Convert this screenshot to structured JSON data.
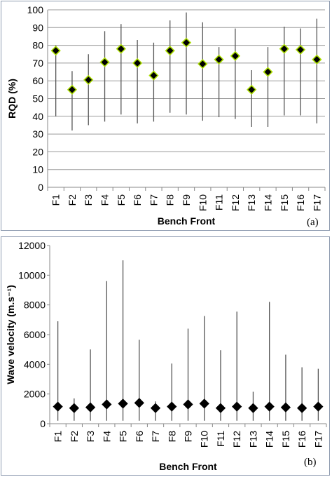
{
  "chart_data": [
    {
      "type": "scatter",
      "panel_label": "(a)",
      "xlabel": "Bench Front",
      "ylabel": "RQD  (%)",
      "ylim": [
        0,
        100
      ],
      "yticks": [
        0,
        10,
        20,
        30,
        40,
        50,
        60,
        70,
        80,
        90,
        100
      ],
      "grid": true,
      "marker": "diamond",
      "marker_fill": "#000000",
      "marker_edge": "#aadd00",
      "categories": [
        "F1",
        "F2",
        "F3",
        "F4",
        "F5",
        "F6",
        "F7",
        "F8",
        "F9",
        "F10",
        "F11",
        "F12",
        "F13",
        "F14",
        "F15",
        "F16",
        "F17"
      ],
      "values": [
        77,
        55,
        60.5,
        70.5,
        78,
        70,
        63,
        77,
        81.5,
        69.5,
        72,
        74,
        55,
        65,
        78,
        77.5,
        72
      ],
      "min": [
        40,
        32,
        35,
        37,
        41,
        36,
        37,
        42,
        41,
        37.5,
        39.5,
        38.5,
        34,
        34,
        40.5,
        40.5,
        36
      ],
      "max": [
        80,
        65.5,
        75,
        88,
        92,
        83,
        81.5,
        94,
        98.5,
        93,
        79,
        89.5,
        66,
        79,
        90.5,
        89.5,
        95
      ]
    },
    {
      "type": "scatter",
      "panel_label": "(b)",
      "xlabel": "Bench Front",
      "ylabel": "Wave velocity (m.s⁻¹)",
      "ylim": [
        0,
        12000
      ],
      "yticks": [
        0,
        2000,
        4000,
        6000,
        8000,
        10000,
        12000
      ],
      "grid": false,
      "marker": "diamond",
      "marker_fill": "#000000",
      "marker_edge": "#000000",
      "categories": [
        "F1",
        "F2",
        "F3",
        "F4",
        "F5",
        "F6",
        "F7",
        "F8",
        "F9",
        "F10",
        "F11",
        "F12",
        "F13",
        "F14",
        "F15",
        "F16",
        "F17"
      ],
      "values": [
        1150,
        1050,
        1100,
        1300,
        1350,
        1400,
        1050,
        1150,
        1300,
        1350,
        1050,
        1150,
        1050,
        1150,
        1100,
        1050,
        1150
      ],
      "min": [
        200,
        200,
        200,
        200,
        200,
        200,
        200,
        200,
        200,
        200,
        200,
        200,
        200,
        200,
        200,
        200,
        200
      ],
      "max": [
        6900,
        1700,
        5000,
        9600,
        11000,
        5650,
        1500,
        4050,
        6400,
        7250,
        4950,
        7550,
        2150,
        8200,
        4650,
        3800,
        3700
      ]
    }
  ]
}
